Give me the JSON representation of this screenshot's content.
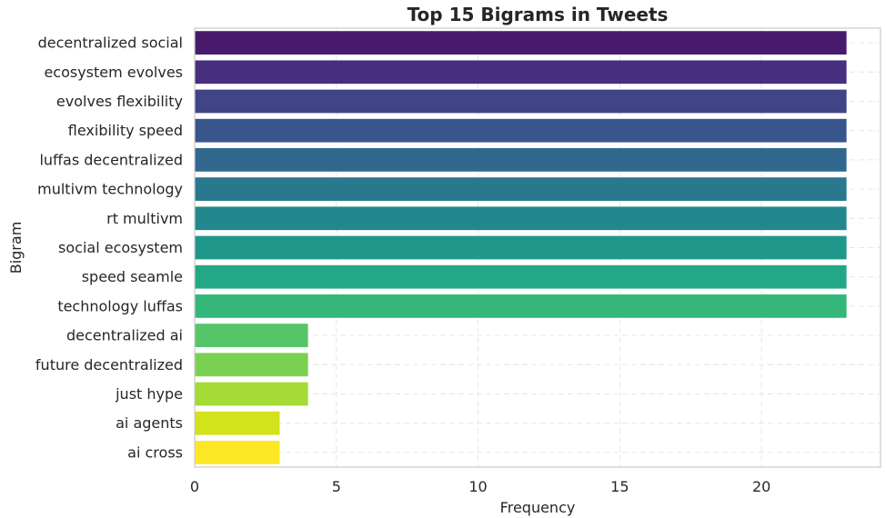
{
  "chart_data": {
    "type": "bar",
    "orientation": "horizontal",
    "title": "Top 15 Bigrams in Tweets",
    "xlabel": "Frequency",
    "ylabel": "Bigram",
    "categories": [
      "decentralized social",
      "ecosystem evolves",
      "evolves flexibility",
      "flexibility speed",
      "luffas decentralized",
      "multivm technology",
      "rt multivm",
      "social ecosystem",
      "speed seamle",
      "technology luffas",
      "decentralized ai",
      "future decentralized",
      "just hype",
      "ai agents",
      "ai cross"
    ],
    "values": [
      23,
      23,
      23,
      23,
      23,
      23,
      23,
      23,
      23,
      23,
      4,
      4,
      4,
      3,
      3
    ],
    "xlim": [
      0,
      24.2
    ],
    "xticks": [
      "0",
      "5",
      "10",
      "15",
      "20"
    ],
    "grid": true,
    "colors": [
      "#481a6c",
      "#472f7d",
      "#414487",
      "#39568c",
      "#31688e",
      "#2a788e",
      "#23888e",
      "#1f988b",
      "#22a884",
      "#35b779",
      "#54c568",
      "#7ad151",
      "#a5db36",
      "#d2e21b",
      "#fde725"
    ],
    "palette": "viridis"
  }
}
